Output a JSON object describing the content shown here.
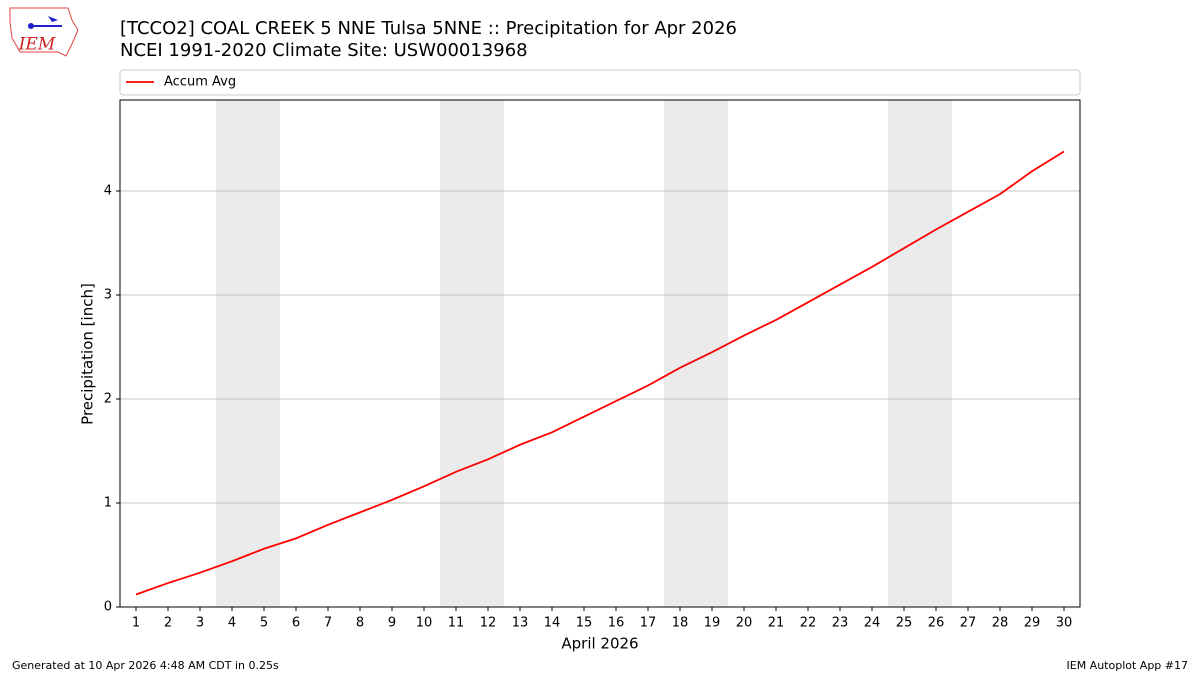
{
  "chart_data": {
    "type": "line",
    "title": "[TCCO2] COAL CREEK 5 NNE Tulsa 5NNE :: Precipitation for Apr 2026",
    "subtitle": "NCEI 1991-2020 Climate Site: USW00013968",
    "xlabel": "April 2026",
    "ylabel": "Precipitation [inch]",
    "x": [
      1,
      2,
      3,
      4,
      5,
      6,
      7,
      8,
      9,
      10,
      11,
      12,
      13,
      14,
      15,
      16,
      17,
      18,
      19,
      20,
      21,
      22,
      23,
      24,
      25,
      26,
      27,
      28,
      29,
      30
    ],
    "series": [
      {
        "name": "Accum Avg",
        "color": "#ff0000",
        "values": [
          0.12,
          0.23,
          0.33,
          0.44,
          0.56,
          0.66,
          0.79,
          0.91,
          1.03,
          1.16,
          1.3,
          1.42,
          1.56,
          1.68,
          1.83,
          1.98,
          2.13,
          2.3,
          2.45,
          2.61,
          2.76,
          2.93,
          3.1,
          3.27,
          3.45,
          3.63,
          3.8,
          3.97,
          4.19,
          4.38
        ]
      }
    ],
    "xlim": [
      0.5,
      30.5
    ],
    "xticks": [
      1,
      2,
      3,
      4,
      5,
      6,
      7,
      8,
      9,
      10,
      11,
      12,
      13,
      14,
      15,
      16,
      17,
      18,
      19,
      20,
      21,
      22,
      23,
      24,
      25,
      26,
      27,
      28,
      29,
      30
    ],
    "ylim": [
      0,
      4.875
    ],
    "yticks": [
      0,
      1,
      2,
      3,
      4
    ],
    "grid": true,
    "legend": "top",
    "weekend_spans": [
      [
        3.5,
        5.5
      ],
      [
        10.5,
        12.5
      ],
      [
        17.5,
        19.5
      ],
      [
        24.5,
        26.5
      ]
    ],
    "span_color": "#ebebeb"
  },
  "logo_text": "IEM",
  "footer_left": "Generated at 10 Apr 2026 4:48 AM CDT in 0.25s",
  "footer_right": "IEM Autoplot App #17"
}
